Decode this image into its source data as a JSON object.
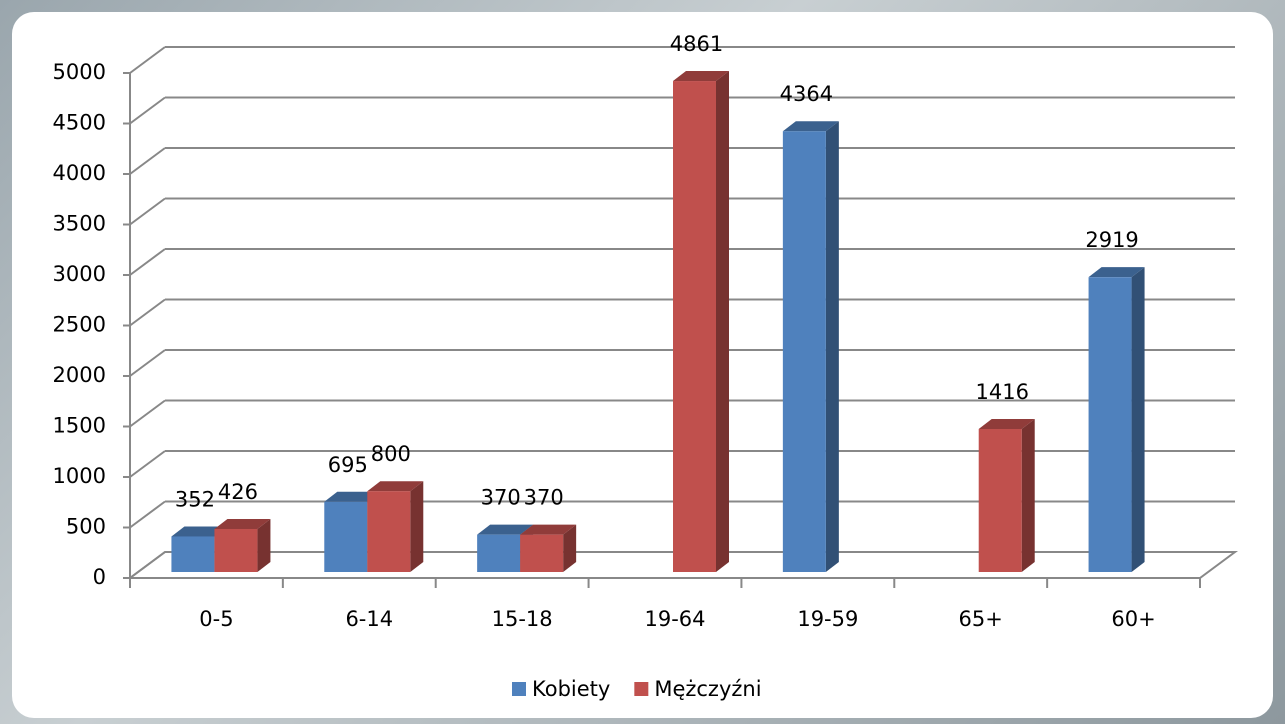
{
  "chart_data": {
    "type": "bar3d",
    "categories": [
      "0-5",
      "6-14",
      "15-18",
      "19-64",
      "19-59",
      "65+",
      "60+"
    ],
    "series": [
      {
        "name": "Kobiety",
        "color": "#4f81bd",
        "values": [
          352,
          695,
          370,
          null,
          4364,
          null,
          2919
        ]
      },
      {
        "name": "Mężczyźni",
        "color": "#c0504d",
        "values": [
          426,
          800,
          370,
          4861,
          null,
          1416,
          null
        ]
      }
    ],
    "ylim": [
      0,
      5000
    ],
    "yticks": [
      0,
      500,
      1000,
      1500,
      2000,
      2500,
      3000,
      3500,
      4000,
      4500,
      5000
    ],
    "grid": true,
    "legend": "bottom"
  }
}
